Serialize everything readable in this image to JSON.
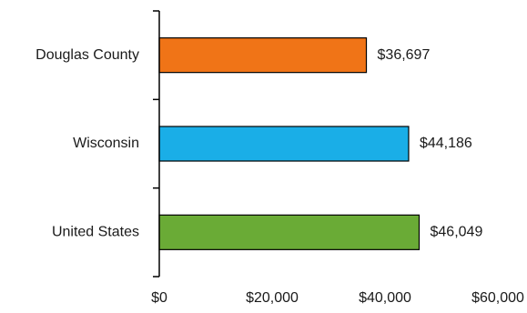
{
  "chart_data": {
    "type": "bar",
    "orientation": "horizontal",
    "categories": [
      "Douglas County",
      "Wisconsin",
      "United States"
    ],
    "values": [
      36697,
      44186,
      46049
    ],
    "value_labels": [
      "$36,697",
      "$44,186",
      "$46,049"
    ],
    "colors": [
      "#f07417",
      "#1aaee7",
      "#6aab36"
    ],
    "x_ticks": [
      0,
      20000,
      40000,
      60000
    ],
    "x_tick_labels": [
      "$0",
      "$20,000",
      "$40,000",
      "$60,000"
    ],
    "xlim": [
      0,
      60000
    ],
    "title": "",
    "xlabel": "",
    "ylabel": "",
    "grid": false,
    "legend": "none"
  }
}
